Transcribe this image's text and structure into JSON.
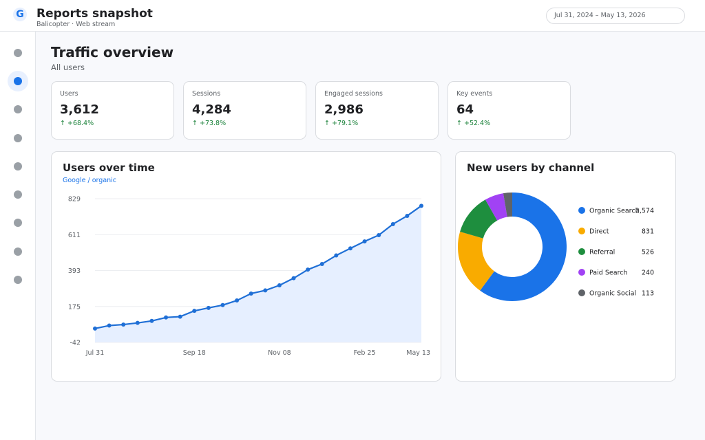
{
  "app": {
    "logo": "G",
    "title": "Reports snapshot",
    "subtitle": "Balicopter · Web stream",
    "date_range": "Jul 31, 2024 – May 13, 2026"
  },
  "sidebar": {
    "items": [
      {
        "icon": "home-icon",
        "active": false
      },
      {
        "icon": "reports-icon",
        "active": true
      },
      {
        "icon": "explore-icon",
        "active": false
      },
      {
        "icon": "advertising-icon",
        "active": false
      },
      {
        "icon": "audience-icon",
        "active": false
      },
      {
        "icon": "engagement-icon",
        "active": false
      },
      {
        "icon": "monetization-icon",
        "active": false
      },
      {
        "icon": "retention-icon",
        "active": false
      },
      {
        "icon": "settings-icon",
        "active": false
      }
    ]
  },
  "page": {
    "title": "Traffic overview",
    "subtitle": "All users"
  },
  "kpis": [
    {
      "label": "Users",
      "value": "3,612",
      "delta": "↑ +68.4%"
    },
    {
      "label": "Sessions",
      "value": "4,284",
      "delta": "↑ +73.8%"
    },
    {
      "label": "Engaged sessions",
      "value": "2,986",
      "delta": "↑ +79.1%"
    },
    {
      "label": "Key events",
      "value": "64",
      "delta": "↑ +52.4%"
    }
  ],
  "colors": {
    "accent": "#1a73e8",
    "positive": "#188038",
    "line": "#1f6fd6",
    "area": "#e6efff"
  },
  "chart_data": [
    {
      "type": "line",
      "title": "Users over time",
      "subtitle": "Google / organic",
      "x_ticks": [
        "Jul 31",
        "Sep 18",
        "Nov 08",
        "Feb 25",
        "May 13"
      ],
      "x_tick_index": [
        0,
        7,
        13,
        19,
        23
      ],
      "y_ticks": [
        "829",
        "611",
        "393",
        "175",
        "-42"
      ],
      "ylim": [
        -42,
        829
      ],
      "grid": true,
      "series": [
        {
          "values": [
            42,
            60,
            66,
            76,
            88,
            109,
            114,
            149,
            167,
            184,
            212,
            254,
            273,
            304,
            347,
            399,
            433,
            485,
            528,
            570,
            608,
            675,
            725,
            786
          ]
        }
      ]
    },
    {
      "type": "pie",
      "title": "New users by channel",
      "legend_position": "right",
      "slices": [
        {
          "label": "Organic Search",
          "value": 2574,
          "value_label": "2,574",
          "color": "#1a73e8"
        },
        {
          "label": "Direct",
          "value": 831,
          "value_label": "831",
          "color": "#f9ab00"
        },
        {
          "label": "Referral",
          "value": 526,
          "value_label": "526",
          "color": "#1e8e3e"
        },
        {
          "label": "Paid Search",
          "value": 240,
          "value_label": "240",
          "color": "#a142f4"
        },
        {
          "label": "Organic Social",
          "value": 113,
          "value_label": "113",
          "color": "#5f6368"
        }
      ]
    }
  ]
}
